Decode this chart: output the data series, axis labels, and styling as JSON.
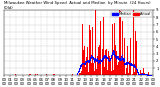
{
  "title": "Milwaukee Weather Wind Speed  Actual and Median  by Minute  (24 Hours) (Old)",
  "bar_color": "#ff0000",
  "median_color": "#0000ff",
  "legend_actual_label": "Actual",
  "legend_median_label": "Median",
  "background_color": "#ffffff",
  "plot_bg_color": "#ffffff",
  "grid_color": "#c8c8c8",
  "n_minutes": 1440,
  "seed": 42,
  "tick_fontsize": 2.8,
  "title_fontsize": 2.8,
  "ylim_max": 9,
  "y_ticks": [
    1,
    2,
    3,
    4,
    5,
    6,
    7,
    8,
    9
  ]
}
